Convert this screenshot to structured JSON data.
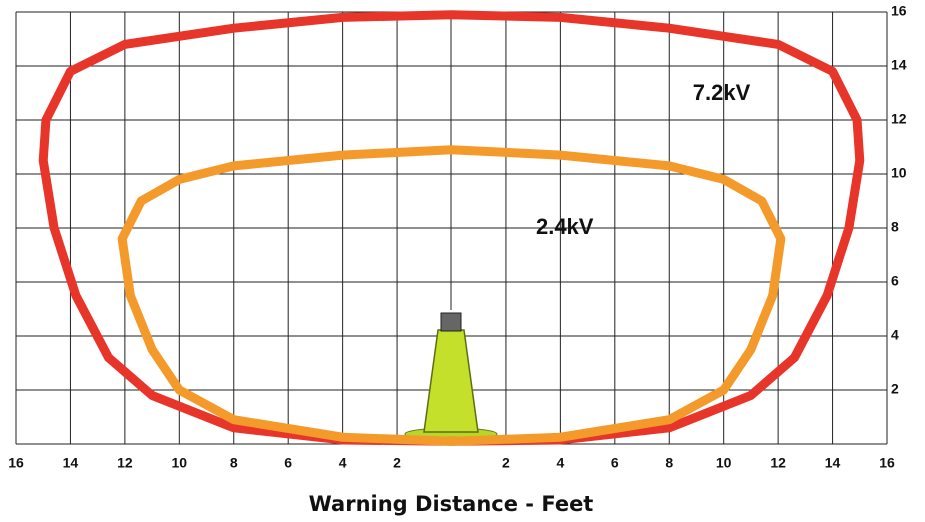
{
  "chart_data": {
    "type": "line",
    "xlabel": "Warning Distance - Feet",
    "xlim": [
      -16,
      16
    ],
    "ylim": [
      0,
      16
    ],
    "xticks": [
      {
        "value": -16,
        "label": "16"
      },
      {
        "value": -14,
        "label": "14"
      },
      {
        "value": -12,
        "label": "12"
      },
      {
        "value": -10,
        "label": "10"
      },
      {
        "value": -8,
        "label": "8"
      },
      {
        "value": -6,
        "label": "6"
      },
      {
        "value": -4,
        "label": "4"
      },
      {
        "value": -2,
        "label": "2"
      },
      2,
      4,
      6,
      8,
      10,
      12,
      14,
      16
    ],
    "yticks": [
      2,
      4,
      6,
      8,
      10,
      12,
      14,
      16
    ],
    "grid": true,
    "series": [
      {
        "name": "7.2kV",
        "color": "#e8352a",
        "x": [
          0,
          4,
          8,
          12,
          14,
          14.9,
          15,
          14.6,
          13.8,
          12.6,
          11,
          8,
          4,
          0,
          -4,
          -8,
          -11,
          -12.6,
          -13.8,
          -14.6,
          -15,
          -14.9,
          -14,
          -12,
          -8,
          -4,
          0
        ],
        "values": [
          15.9,
          15.8,
          15.4,
          14.8,
          13.8,
          12,
          10.5,
          8,
          5.5,
          3.2,
          1.8,
          0.6,
          0.15,
          0.1,
          0.15,
          0.6,
          1.8,
          3.2,
          5.5,
          8,
          10.5,
          12,
          13.8,
          14.8,
          15.4,
          15.8,
          15.9
        ]
      },
      {
        "name": "2.4kV",
        "color": "#f39a2b",
        "x": [
          0,
          4,
          8,
          10,
          11.4,
          12.1,
          11.8,
          11,
          10,
          8,
          4,
          0,
          -4,
          -8,
          -10,
          -11,
          -11.8,
          -12.1,
          -11.4,
          -10,
          -8,
          -4,
          0
        ],
        "values": [
          10.9,
          10.7,
          10.3,
          9.8,
          9,
          7.6,
          5.5,
          3.5,
          2,
          0.9,
          0.25,
          0.1,
          0.25,
          0.9,
          2,
          3.5,
          5.5,
          7.6,
          9,
          9.8,
          10.3,
          10.7,
          10.9
        ]
      }
    ]
  }
}
